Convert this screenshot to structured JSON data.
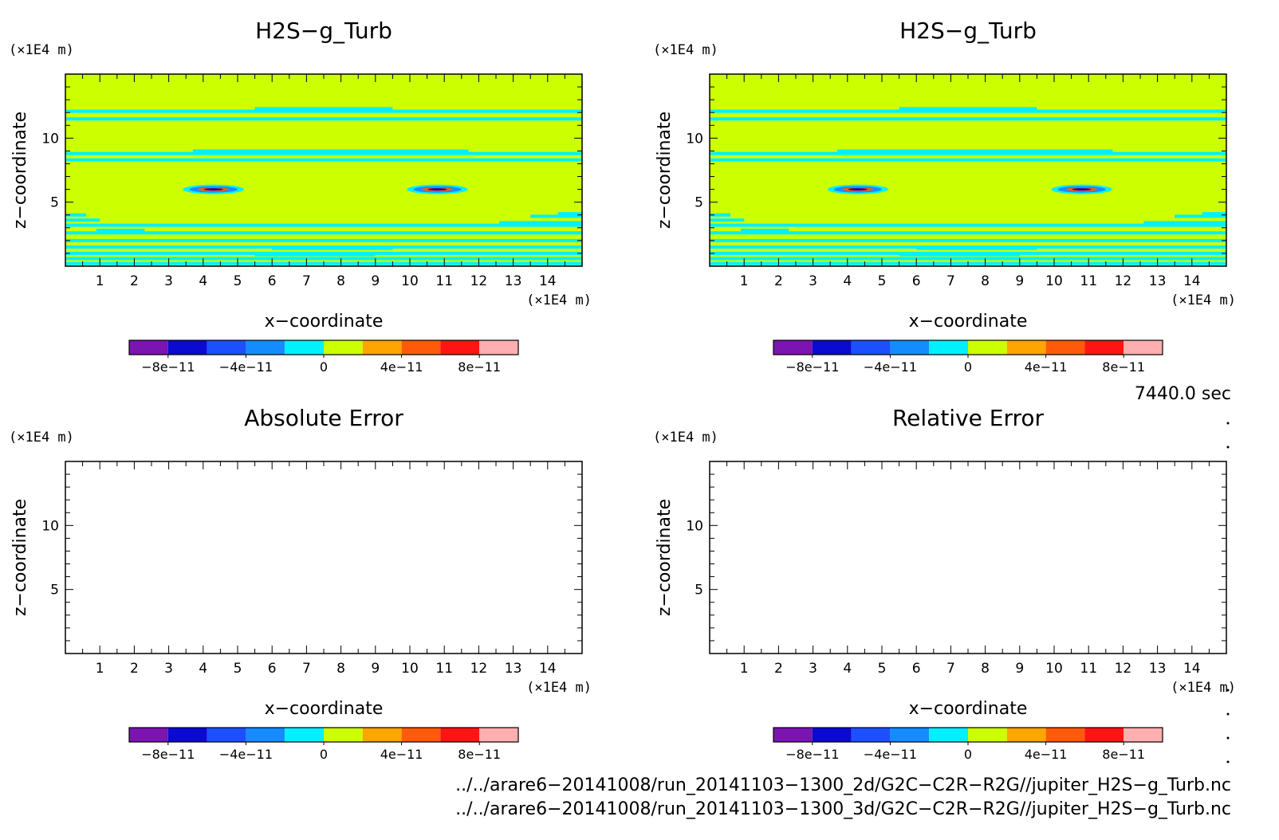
{
  "chart_data": [
    {
      "type": "heatmap",
      "title": "H2S−g_Turb",
      "xlabel": "x−coordinate",
      "ylabel": "z−coordinate",
      "x_unit": "(×1E4 m)",
      "y_unit": "(×1E4 m)",
      "xlim": [
        0,
        15
      ],
      "ylim": [
        0,
        15
      ],
      "x_ticks": [
        1,
        2,
        3,
        4,
        5,
        6,
        7,
        8,
        9,
        10,
        11,
        12,
        13,
        14
      ],
      "y_ticks": [
        5,
        10
      ],
      "colorbar": {
        "levels": 10,
        "colors": [
          "#7b14b0",
          "#0a0ad0",
          "#1c50ff",
          "#148cff",
          "#00f0ff",
          "#ccff00",
          "#ffa500",
          "#ff5a0a",
          "#ff1414",
          "#ffafaf"
        ],
        "tick_labels": [
          "−8e−11",
          "−4e−11",
          "0",
          "4e−11",
          "8e−11"
        ],
        "tick_values": [
          -8e-11,
          -4e-11,
          0,
          4e-11,
          8e-11
        ],
        "range": [
          -1e-10,
          1e-10
        ]
      },
      "field": {
        "background_level": "0 to 2e-11",
        "cyan_bands_z": [
          0.2,
          0.6,
          1.0,
          1.5,
          2.0,
          2.6,
          3.2,
          6.0,
          8.3,
          8.8,
          11.5,
          12.1
        ],
        "local_extrema": [
          {
            "x": 4.3,
            "z": 6.0
          },
          {
            "x": 10.8,
            "z": 6.0
          }
        ]
      }
    },
    {
      "type": "heatmap",
      "title": "H2S−g_Turb",
      "xlabel": "x−coordinate",
      "ylabel": "z−coordinate",
      "x_unit": "(×1E4 m)",
      "y_unit": "(×1E4 m)",
      "xlim": [
        0,
        15
      ],
      "ylim": [
        0,
        15
      ],
      "x_ticks": [
        1,
        2,
        3,
        4,
        5,
        6,
        7,
        8,
        9,
        10,
        11,
        12,
        13,
        14
      ],
      "y_ticks": [
        5,
        10
      ],
      "colorbar": {
        "levels": 10,
        "colors": [
          "#7b14b0",
          "#0a0ad0",
          "#1c50ff",
          "#148cff",
          "#00f0ff",
          "#ccff00",
          "#ffa500",
          "#ff5a0a",
          "#ff1414",
          "#ffafaf"
        ],
        "tick_labels": [
          "−8e−11",
          "−4e−11",
          "0",
          "4e−11",
          "8e−11"
        ],
        "tick_values": [
          -8e-11,
          -4e-11,
          0,
          4e-11,
          8e-11
        ],
        "range": [
          -1e-10,
          1e-10
        ]
      },
      "field": {
        "background_level": "0 to 2e-11",
        "cyan_bands_z": [
          0.2,
          0.6,
          1.0,
          1.5,
          2.0,
          2.6,
          3.2,
          6.0,
          8.3,
          8.8,
          11.5,
          12.1
        ],
        "local_extrema": [
          {
            "x": 4.3,
            "z": 6.0
          },
          {
            "x": 10.8,
            "z": 6.0
          }
        ]
      }
    },
    {
      "type": "heatmap",
      "title": "Absolute Error",
      "xlabel": "x−coordinate",
      "ylabel": "z−coordinate",
      "x_unit": "(×1E4 m)",
      "y_unit": "(×1E4 m)",
      "xlim": [
        0,
        15
      ],
      "ylim": [
        0,
        15
      ],
      "x_ticks": [
        1,
        2,
        3,
        4,
        5,
        6,
        7,
        8,
        9,
        10,
        11,
        12,
        13,
        14
      ],
      "y_ticks": [
        5,
        10
      ],
      "colorbar": {
        "levels": 10,
        "colors": [
          "#7b14b0",
          "#0a0ad0",
          "#1c50ff",
          "#148cff",
          "#00f0ff",
          "#ccff00",
          "#ffa500",
          "#ff5a0a",
          "#ff1414",
          "#ffafaf"
        ],
        "tick_labels": [
          "−8e−11",
          "−4e−11",
          "0",
          "4e−11",
          "8e−11"
        ],
        "tick_values": [
          -8e-11,
          -4e-11,
          0,
          4e-11,
          8e-11
        ],
        "range": [
          -1e-10,
          1e-10
        ]
      },
      "field": null
    },
    {
      "type": "heatmap",
      "title": "Relative Error",
      "xlabel": "x−coordinate",
      "ylabel": "z−coordinate",
      "x_unit": "(×1E4 m)",
      "y_unit": "(×1E4 m)",
      "xlim": [
        0,
        15
      ],
      "ylim": [
        0,
        15
      ],
      "x_ticks": [
        1,
        2,
        3,
        4,
        5,
        6,
        7,
        8,
        9,
        10,
        11,
        12,
        13,
        14
      ],
      "y_ticks": [
        5,
        10
      ],
      "colorbar": {
        "levels": 10,
        "colors": [
          "#7b14b0",
          "#0a0ad0",
          "#1c50ff",
          "#148cff",
          "#00f0ff",
          "#ccff00",
          "#ffa500",
          "#ff5a0a",
          "#ff1414",
          "#ffafaf"
        ],
        "tick_labels": [
          "−8e−11",
          "−4e−11",
          "0",
          "4e−11",
          "8e−11"
        ],
        "tick_values": [
          -8e-11,
          -4e-11,
          0,
          4e-11,
          8e-11
        ],
        "range": [
          -1e-10,
          1e-10
        ]
      },
      "field": null
    }
  ],
  "time_label": "7440.0 sec",
  "file_paths": [
    "../../arare6−20141008/run_20141103−1300_2d/G2C−C2R−R2G//jupiter_H2S−g_Turb.nc",
    "../../arare6−20141008/run_20141103−1300_3d/G2C−C2R−R2G//jupiter_H2S−g_Turb.nc"
  ]
}
